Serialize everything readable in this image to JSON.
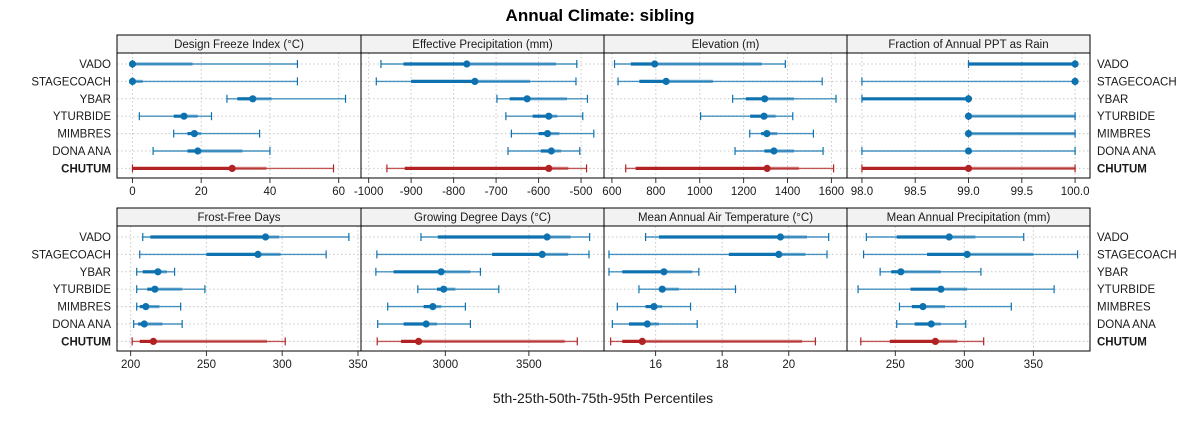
{
  "chart_data": {
    "type": "dotplot-percentiles",
    "title": "Annual Climate: sibling",
    "xlabel": "5th-25th-50th-75th-95th Percentiles",
    "percentiles": [
      "5th",
      "25th",
      "50th",
      "75th",
      "95th"
    ],
    "rows": [
      "VADO",
      "STAGECOACH",
      "YBAR",
      "YTURBIDE",
      "MIMBRES",
      "DONA ANA",
      "CHUTUM"
    ],
    "highlight_row": "CHUTUM",
    "colors": {
      "series": "#0e72b0",
      "highlight": "#b22222",
      "strip_bg": "#f2f2f2",
      "grid": "#c8c8c8"
    },
    "grid": true,
    "panels": [
      {
        "title": "Design Freeze Index (°C)",
        "xlim": [
          -4.5,
          66.5
        ],
        "ticks": [
          0,
          20,
          40,
          60
        ],
        "tick_labels": [
          "0",
          "20",
          "40",
          "60"
        ],
        "values": {
          "VADO": [
            0,
            0,
            0,
            17.5,
            48
          ],
          "STAGECOACH": [
            0,
            0,
            0,
            3,
            48
          ],
          "YBAR": [
            27.5,
            30.5,
            35,
            40.5,
            62
          ],
          "YTURBIDE": [
            2,
            12,
            15,
            19,
            23
          ],
          "MIMBRES": [
            12,
            16,
            18,
            20,
            37
          ],
          "DONA ANA": [
            6,
            16,
            19,
            32,
            40
          ],
          "CHUTUM": [
            0,
            0,
            29,
            39,
            58.5
          ]
        }
      },
      {
        "title": "Effective Precipitation (mm)",
        "xlim": [
          -1018,
          -446
        ],
        "ticks": [
          -1000,
          -900,
          -800,
          -700,
          -600,
          -500
        ],
        "tick_labels": [
          "-1000",
          "-900",
          "-800",
          "-700",
          "-600",
          "-500"
        ],
        "values": {
          "VADO": [
            -971,
            -918,
            -769,
            -559,
            -510
          ],
          "STAGECOACH": [
            -982,
            -900,
            -750,
            -620,
            -512
          ],
          "YBAR": [
            -698,
            -668,
            -627,
            -533,
            -485
          ],
          "YTURBIDE": [
            -677,
            -614,
            -576,
            -556,
            -496
          ],
          "MIMBRES": [
            -664,
            -600,
            -579,
            -551,
            -470
          ],
          "DONA ANA": [
            -672,
            -595,
            -570,
            -547,
            -503
          ],
          "CHUTUM": [
            -957,
            -915,
            -576,
            -530,
            -487
          ]
        }
      },
      {
        "title": "Elevation (m)",
        "xlim": [
          564,
          1671
        ],
        "ticks": [
          600,
          800,
          1000,
          1200,
          1400,
          1600
        ],
        "tick_labels": [
          "600",
          "800",
          "1000",
          "1200",
          "1400",
          "1600"
        ],
        "values": {
          "VADO": [
            612,
            686,
            795,
            1283,
            1390
          ],
          "STAGECOACH": [
            628,
            725,
            847,
            1060,
            1558
          ],
          "YBAR": [
            1150,
            1210,
            1296,
            1430,
            1621
          ],
          "YTURBIDE": [
            1004,
            1230,
            1293,
            1346,
            1424
          ],
          "MIMBRES": [
            1228,
            1280,
            1306,
            1353,
            1518
          ],
          "DONA ANA": [
            1161,
            1295,
            1338,
            1430,
            1562
          ],
          "CHUTUM": [
            663,
            708,
            1307,
            1452,
            1610
          ]
        }
      },
      {
        "title": "Fraction of Annual PPT as Rain",
        "xlim": [
          97.86,
          100.14
        ],
        "ticks": [
          98.0,
          98.5,
          99.0,
          99.5,
          100.0
        ],
        "tick_labels": [
          "98.0",
          "98.5",
          "99.0",
          "99.5",
          "100.0"
        ],
        "values": {
          "VADO": [
            99,
            99,
            100,
            100,
            100
          ],
          "STAGECOACH": [
            98,
            100,
            100,
            100,
            100
          ],
          "YBAR": [
            98,
            98,
            99,
            99,
            99
          ],
          "YTURBIDE": [
            99,
            99,
            99,
            100,
            100
          ],
          "MIMBRES": [
            99,
            99,
            99,
            100,
            100
          ],
          "DONA ANA": [
            98,
            99,
            99,
            99,
            100
          ],
          "CHUTUM": [
            98,
            98,
            99,
            100,
            100
          ]
        }
      },
      {
        "title": "Frost-Free Days",
        "xlim": [
          191,
          352
        ],
        "ticks": [
          200,
          250,
          300,
          350
        ],
        "tick_labels": [
          "200",
          "250",
          "300",
          "350"
        ],
        "values": {
          "VADO": [
            208,
            213,
            289,
            298,
            344
          ],
          "STAGECOACH": [
            206,
            250,
            284,
            299,
            329
          ],
          "YBAR": [
            204,
            208,
            218,
            224,
            229
          ],
          "YTURBIDE": [
            204,
            211,
            216,
            234,
            249
          ],
          "MIMBRES": [
            204,
            206,
            210,
            219,
            233
          ],
          "DONA ANA": [
            202,
            205,
            209,
            221,
            234
          ],
          "CHUTUM": [
            201,
            206,
            215,
            290,
            302
          ]
        }
      },
      {
        "title": "Growing Degree Days (°C)",
        "xlim": [
          2495,
          3950
        ],
        "ticks": [
          3000,
          3500
        ],
        "tick_labels": [
          "3000",
          "3500"
        ],
        "values": {
          "VADO": [
            2854,
            2955,
            3609,
            3750,
            3864
          ],
          "STAGECOACH": [
            2590,
            3280,
            3580,
            3735,
            3860
          ],
          "YBAR": [
            2584,
            2690,
            2975,
            3150,
            3210
          ],
          "YTURBIDE": [
            2835,
            2950,
            2990,
            3060,
            3320
          ],
          "MIMBRES": [
            2655,
            2870,
            2925,
            2975,
            3120
          ],
          "DONA ANA": [
            2595,
            2750,
            2885,
            2950,
            3150
          ],
          "CHUTUM": [
            2592,
            2735,
            2840,
            3715,
            3790
          ]
        }
      },
      {
        "title": "Mean Annual Air Temperature (°C)",
        "xlim": [
          14.45,
          21.75
        ],
        "ticks": [
          16,
          18,
          20
        ],
        "tick_labels": [
          "16",
          "18",
          "20"
        ],
        "values": {
          "VADO": [
            15.7,
            16.1,
            19.75,
            20.55,
            21.2
          ],
          "STAGECOACH": [
            14.6,
            18.2,
            19.7,
            20.5,
            21.15
          ],
          "YBAR": [
            14.6,
            15.0,
            16.25,
            17.1,
            17.3
          ],
          "YTURBIDE": [
            15.5,
            16.1,
            16.2,
            16.7,
            18.4
          ],
          "MIMBRES": [
            14.85,
            15.7,
            15.95,
            16.2,
            17.05
          ],
          "DONA ANA": [
            14.7,
            15.2,
            15.75,
            16.1,
            17.25
          ],
          "CHUTUM": [
            14.65,
            15.0,
            15.6,
            20.4,
            20.8
          ]
        }
      },
      {
        "title": "Mean Annual Precipitation (mm)",
        "xlim": [
          215,
          391
        ],
        "ticks": [
          250,
          300,
          350
        ],
        "tick_labels": [
          "250",
          "300",
          "350"
        ],
        "values": {
          "VADO": [
            229,
            251,
            289,
            308,
            343
          ],
          "STAGECOACH": [
            227,
            273,
            302,
            350,
            382
          ],
          "YBAR": [
            239,
            247,
            254,
            283,
            312
          ],
          "YTURBIDE": [
            223,
            261,
            283,
            302,
            365
          ],
          "MIMBRES": [
            253,
            262,
            270,
            286,
            334
          ],
          "DONA ANA": [
            251,
            264,
            276,
            283,
            301
          ],
          "CHUTUM": [
            225,
            246,
            279,
            295,
            314
          ]
        }
      }
    ]
  }
}
